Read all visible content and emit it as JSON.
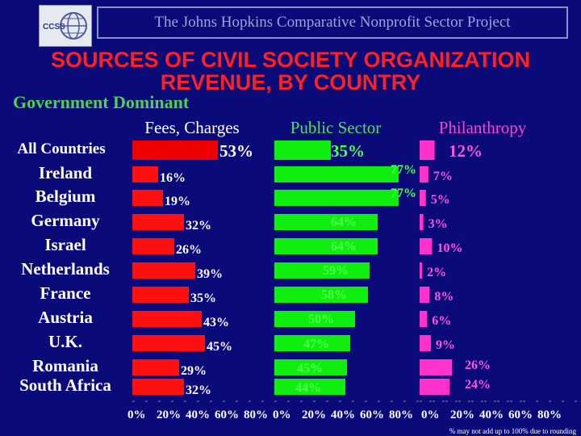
{
  "header": {
    "project_title": "The Johns Hopkins Comparative Nonprofit Sector Project",
    "logo_text": "CCSS"
  },
  "title_lines": [
    "SOURCES OF CIVIL SOCIETY ORGANIZATION",
    "REVENUE, BY COUNTRY"
  ],
  "subtitle": "Government Dominant",
  "footnote": "% may not add up to 100% due to rounding",
  "colors": {
    "fees": "#ff1010",
    "public": "#10ee10",
    "philanthropy": "#ff33cc",
    "all_countries": "#ee0000",
    "axis_text": "#ffffff"
  },
  "chart_data": {
    "type": "bar",
    "orientation": "horizontal",
    "categories": [
      "All Countries",
      "Ireland",
      "Belgium",
      "Germany",
      "Israel",
      "Netherlands",
      "France",
      "Austria",
      "U.K.",
      "Romania",
      "South Africa"
    ],
    "series": [
      {
        "name": "Fees, Charges",
        "values": [
          53,
          16,
          19,
          32,
          26,
          39,
          35,
          43,
          45,
          29,
          32
        ],
        "labels": [
          "53%",
          "16%",
          "19%",
          "32%",
          "26%",
          "39%",
          "35%",
          "43%",
          "45%",
          "29%",
          "32%"
        ]
      },
      {
        "name": "Public Sector",
        "values": [
          35,
          77,
          77,
          64,
          64,
          59,
          58,
          50,
          47,
          45,
          44
        ],
        "labels": [
          "35%",
          "77%",
          "77%",
          "64%",
          "64%",
          "59%",
          "58%",
          "50%",
          "47%",
          "45%",
          "44%"
        ]
      },
      {
        "name": "Philanthropy",
        "values": [
          12,
          7,
          5,
          3,
          10,
          2,
          8,
          6,
          9,
          26,
          24
        ],
        "labels": [
          "12%",
          "7%",
          "5%",
          "3%",
          "10%",
          "2%",
          "8%",
          "6%",
          "9%",
          "26%",
          "24%"
        ]
      }
    ],
    "x_ticks": [
      "0%",
      "20%",
      "40%",
      "60%",
      "80%"
    ],
    "xlim": [
      0,
      80
    ]
  }
}
